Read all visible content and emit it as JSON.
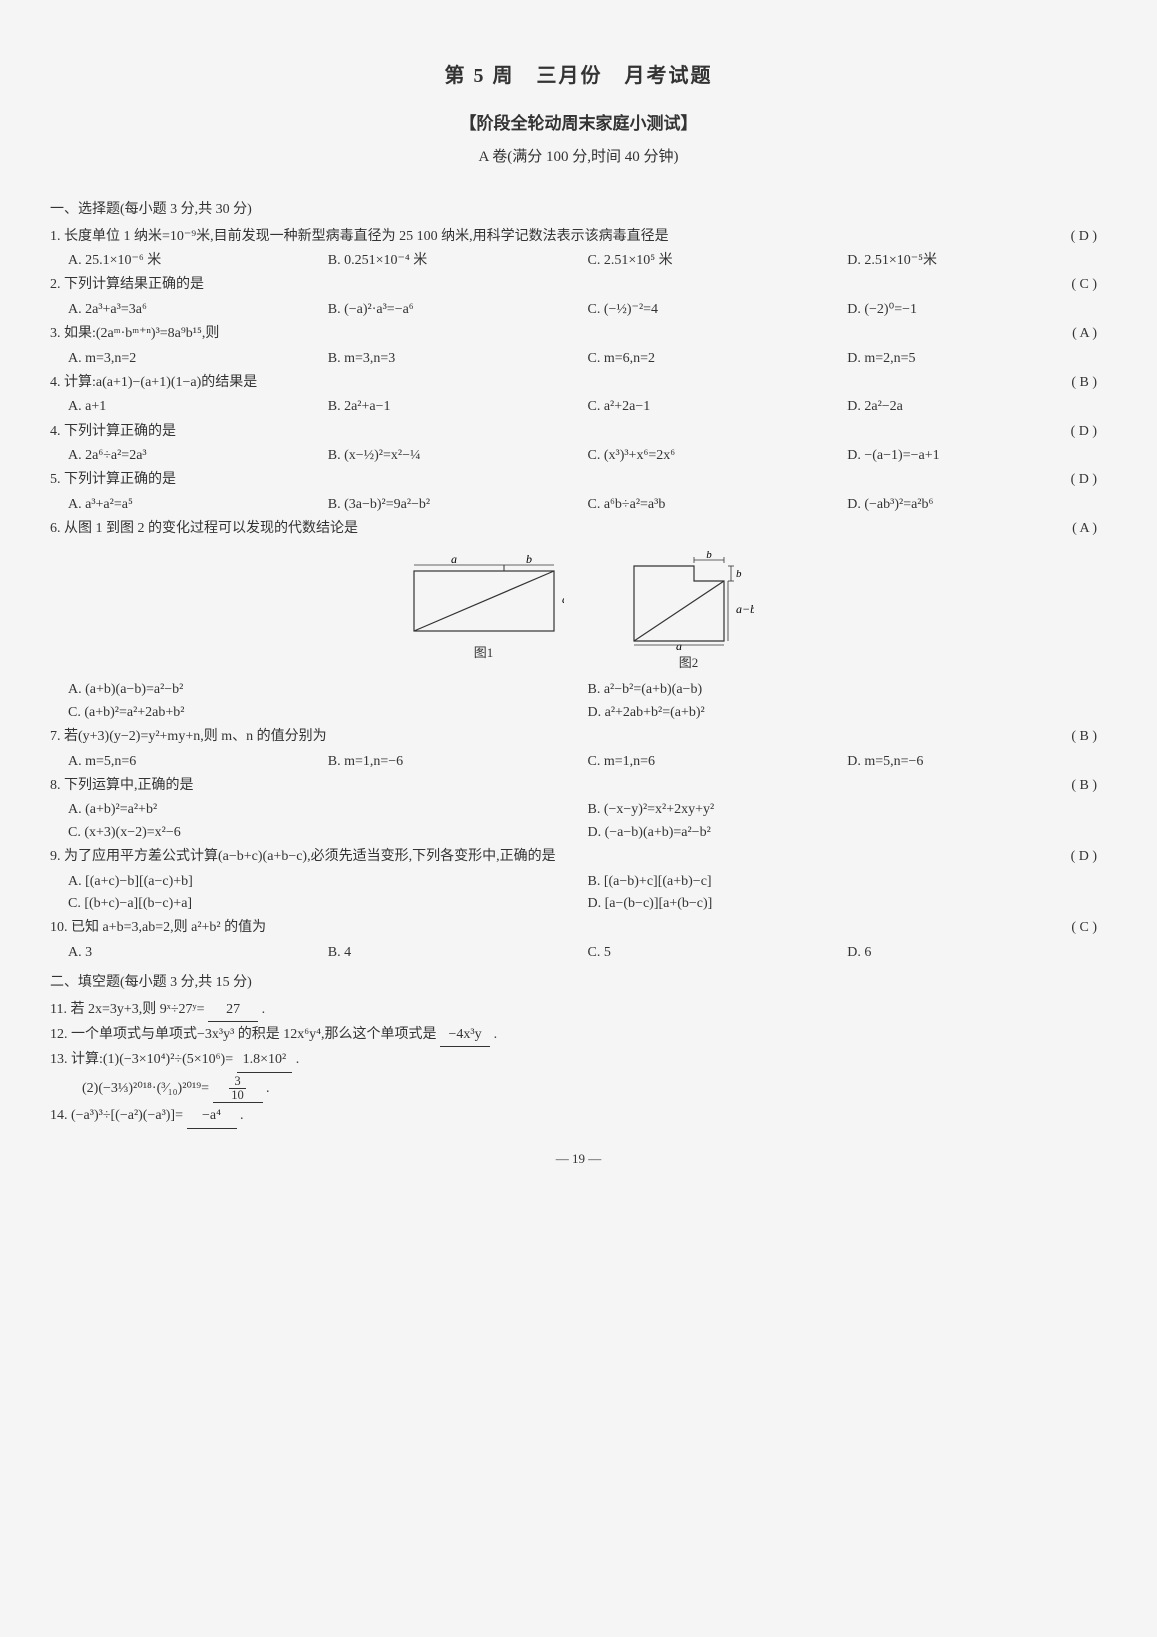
{
  "header": {
    "main_title": "第 5 周　三月份　月考试题",
    "sub_title": "【阶段全轮动周末家庭小测试】",
    "paper_info": "A 卷(满分 100 分,时间 40 分钟)"
  },
  "section1": {
    "header": "一、选择题(每小题 3 分,共 30 分)",
    "questions": [
      {
        "num": "1.",
        "stem": "长度单位 1 纳米=10⁻⁹米,目前发现一种新型病毒直径为 25 100 纳米,用科学记数法表示该病毒直径是",
        "answer": "( D )",
        "opts": [
          "A. 25.1×10⁻⁶ 米",
          "B. 0.251×10⁻⁴ 米",
          "C. 2.51×10⁵ 米",
          "D. 2.51×10⁻⁵米"
        ]
      },
      {
        "num": "2.",
        "stem": "下列计算结果正确的是",
        "answer": "( C )",
        "opts": [
          "A. 2a³+a³=3a⁶",
          "B. (−a)²·a³=−a⁶",
          "C. (−½)⁻²=4",
          "D. (−2)⁰=−1"
        ]
      },
      {
        "num": "3.",
        "stem": "如果:(2aᵐ·bᵐ⁺ⁿ)³=8a⁹b¹⁵,则",
        "answer": "( A )",
        "opts": [
          "A. m=3,n=2",
          "B. m=3,n=3",
          "C. m=6,n=2",
          "D. m=2,n=5"
        ]
      },
      {
        "num": "4.",
        "stem": "计算:a(a+1)−(a+1)(1−a)的结果是",
        "answer": "( B )",
        "opts": [
          "A. a+1",
          "B. 2a²+a−1",
          "C. a²+2a−1",
          "D. 2a²−2a"
        ]
      },
      {
        "num": "4.",
        "stem": "下列计算正确的是",
        "answer": "( D )",
        "opts": [
          "A. 2a⁶÷a²=2a³",
          "B. (x−½)²=x²−¼",
          "C. (x³)³+x⁶=2x⁶",
          "D. −(a−1)=−a+1"
        ]
      },
      {
        "num": "5.",
        "stem": "下列计算正确的是",
        "answer": "( D )",
        "opts": [
          "A. a³+a²=a⁵",
          "B. (3a−b)²=9a²−b²",
          "C. a⁶b÷a²=a³b",
          "D. (−ab³)²=a²b⁶"
        ]
      },
      {
        "num": "6.",
        "stem": "从图 1 到图 2 的变化过程可以发现的代数结论是",
        "answer": "( A )",
        "opts_2col": true,
        "opts": [
          "A. (a+b)(a−b)=a²−b²",
          "B. a²−b²=(a+b)(a−b)",
          "C. (a+b)²=a²+2ab+b²",
          "D. a²+2ab+b²=(a+b)²"
        ]
      },
      {
        "num": "7.",
        "stem": "若(y+3)(y−2)=y²+my+n,则 m、n 的值分别为",
        "answer": "( B )",
        "opts": [
          "A. m=5,n=6",
          "B. m=1,n=−6",
          "C. m=1,n=6",
          "D. m=5,n=−6"
        ]
      },
      {
        "num": "8.",
        "stem": "下列运算中,正确的是",
        "answer": "( B )",
        "opts_2col": true,
        "opts": [
          "A. (a+b)²=a²+b²",
          "B. (−x−y)²=x²+2xy+y²",
          "C. (x+3)(x−2)=x²−6",
          "D. (−a−b)(a+b)=a²−b²"
        ]
      },
      {
        "num": "9.",
        "stem": "为了应用平方差公式计算(a−b+c)(a+b−c),必须先适当变形,下列各变形中,正确的是",
        "answer": "( D )",
        "opts_2col": true,
        "opts": [
          "A. [(a+c)−b][(a−c)+b]",
          "B. [(a−b)+c][(a+b)−c]",
          "C. [(b+c)−a][(b−c)+a]",
          "D. [a−(b−c)][a+(b−c)]"
        ]
      },
      {
        "num": "10.",
        "stem": "已知 a+b=3,ab=2,则 a²+b² 的值为",
        "answer": "( C )",
        "opts": [
          "A. 3",
          "B. 4",
          "C. 5",
          "D. 6"
        ]
      }
    ]
  },
  "figures": {
    "fig1_label": "图1",
    "fig2_label": "图2",
    "labels": {
      "a": "a",
      "b": "b",
      "amb": "a−b"
    }
  },
  "section2": {
    "header": "二、填空题(每小题 3 分,共 15 分)",
    "q11": {
      "stem_pre": "11. 若 2x=3y+3,则 9ˣ÷27ʸ=",
      "blank": "27",
      "stem_post": "."
    },
    "q12": {
      "stem_pre": "12. 一个单项式与单项式−3x³y³ 的积是 12x⁶y⁴,那么这个单项式是",
      "blank": "−4x³y",
      "stem_post": "."
    },
    "q13a": {
      "stem_pre": "13. 计算:(1)(−3×10⁴)²÷(5×10⁶)=",
      "blank": "1.8×10²",
      "stem_post": "."
    },
    "q13b": {
      "stem_pre": "(2)(−3⅓)²⁰¹⁸·(³⁄₁₀)²⁰¹⁹=",
      "blank_frac_num": "3",
      "blank_frac_den": "10",
      "stem_post": "."
    },
    "q14": {
      "stem_pre": "14. (−a³)³÷[(−a²)(−a³)]=",
      "blank": "−a⁴",
      "stem_post": "."
    }
  },
  "page_number": "— 19 —"
}
